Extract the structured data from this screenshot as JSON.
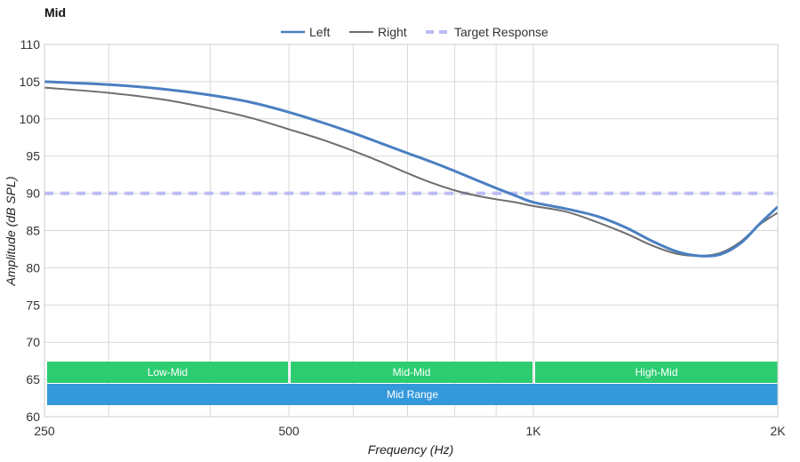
{
  "chart_data": {
    "type": "line",
    "title": "Mid",
    "xlabel": "Frequency (Hz)",
    "ylabel": "Amplitude (dB SPL)",
    "xscale": "log",
    "xlim": [
      250,
      2000
    ],
    "ylim": [
      60,
      110
    ],
    "grid": true,
    "legend_position": "top-center",
    "x_ticks": [
      {
        "value": 250,
        "label": "250"
      },
      {
        "value": 500,
        "label": "500"
      },
      {
        "value": 1000,
        "label": "1K"
      },
      {
        "value": 2000,
        "label": "2K"
      }
    ],
    "x_minor_gridlines": [
      300,
      400,
      600,
      700,
      800,
      900
    ],
    "y_ticks": [
      60,
      65,
      70,
      75,
      80,
      85,
      90,
      95,
      100,
      105,
      110
    ],
    "series": [
      {
        "name": "Left",
        "color": "#4a7fc1",
        "style": "solid",
        "points": [
          [
            250,
            105
          ],
          [
            300,
            104.6
          ],
          [
            350,
            104
          ],
          [
            400,
            103.2
          ],
          [
            450,
            102.2
          ],
          [
            500,
            100.9
          ],
          [
            550,
            99.5
          ],
          [
            600,
            98.1
          ],
          [
            650,
            96.7
          ],
          [
            700,
            95.4
          ],
          [
            750,
            94.2
          ],
          [
            800,
            93
          ],
          [
            850,
            91.8
          ],
          [
            900,
            90.7
          ],
          [
            950,
            89.7
          ],
          [
            1000,
            88.8
          ],
          [
            1100,
            87.9
          ],
          [
            1200,
            86.9
          ],
          [
            1300,
            85.4
          ],
          [
            1400,
            83.6
          ],
          [
            1500,
            82.2
          ],
          [
            1600,
            81.6
          ],
          [
            1700,
            81.8
          ],
          [
            1800,
            83.3
          ],
          [
            1900,
            85.9
          ],
          [
            2000,
            88.2
          ]
        ]
      },
      {
        "name": "Right",
        "color": "#6e6e6e",
        "style": "solid",
        "points": [
          [
            250,
            104.2
          ],
          [
            300,
            103.5
          ],
          [
            350,
            102.6
          ],
          [
            400,
            101.4
          ],
          [
            450,
            100.1
          ],
          [
            500,
            98.6
          ],
          [
            550,
            97.2
          ],
          [
            600,
            95.7
          ],
          [
            650,
            94.2
          ],
          [
            700,
            92.7
          ],
          [
            750,
            91.4
          ],
          [
            800,
            90.4
          ],
          [
            850,
            89.7
          ],
          [
            900,
            89.2
          ],
          [
            950,
            88.8
          ],
          [
            1000,
            88.3
          ],
          [
            1100,
            87.5
          ],
          [
            1200,
            86.1
          ],
          [
            1300,
            84.6
          ],
          [
            1400,
            83
          ],
          [
            1500,
            81.9
          ],
          [
            1600,
            81.6
          ],
          [
            1700,
            82
          ],
          [
            1800,
            83.5
          ],
          [
            1900,
            85.8
          ],
          [
            2000,
            87.4
          ]
        ]
      },
      {
        "name": "Target Response",
        "color": "#bcbcf5",
        "style": "dashed",
        "points": [
          [
            250,
            90
          ],
          [
            2000,
            90
          ]
        ]
      }
    ],
    "bands": [
      {
        "label": "Low-Mid",
        "from": 250,
        "to": 500,
        "row": 1,
        "color": "#2ecc71"
      },
      {
        "label": "Mid-Mid",
        "from": 500,
        "to": 1000,
        "row": 1,
        "color": "#2ecc71"
      },
      {
        "label": "High-Mid",
        "from": 1000,
        "to": 2000,
        "row": 1,
        "color": "#2ecc71"
      },
      {
        "label": "Mid Range",
        "from": 250,
        "to": 2000,
        "row": 2,
        "color": "#3498db"
      }
    ]
  }
}
